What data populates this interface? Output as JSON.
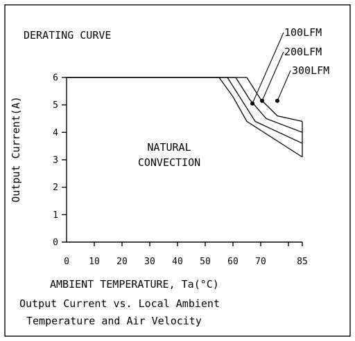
{
  "chart_data": {
    "type": "line",
    "title": "DERATING CURVE",
    "xlabel": "AMBIENT TEMPERATURE, Ta(°C)",
    "ylabel": "Output Current(A)",
    "caption": [
      "Output Current vs. Local Ambient",
      "Temperature and Air Velocity"
    ],
    "annotation": [
      "NATURAL",
      "CONVECTION"
    ],
    "xlim": [
      0,
      85
    ],
    "ylim": [
      0,
      6
    ],
    "x_ticks": [
      0,
      10,
      20,
      30,
      40,
      50,
      60,
      70,
      85
    ],
    "x_tick_labels": [
      "0",
      "10",
      "20",
      "30",
      "40",
      "50",
      "60",
      "70",
      "85"
    ],
    "x_minor_ticks": [
      80
    ],
    "y_ticks": [
      0,
      1,
      2,
      3,
      4,
      5,
      6
    ],
    "y_tick_labels": [
      "0",
      "1",
      "2",
      "3",
      "4",
      "5",
      "6"
    ],
    "grid": false,
    "series": [
      {
        "name": "",
        "x": [
          0,
          55,
          60,
          65,
          85
        ],
        "y": [
          6,
          6,
          5.3,
          4.4,
          3.1
        ]
      },
      {
        "name": "100LFM",
        "x": [
          0,
          58,
          63,
          68,
          85
        ],
        "y": [
          6,
          6,
          5.2,
          4.4,
          3.6
        ]
      },
      {
        "name": "200LFM",
        "x": [
          0,
          61,
          66,
          72,
          85
        ],
        "y": [
          6,
          6,
          5.2,
          4.5,
          4.0
        ]
      },
      {
        "name": "300LFM",
        "x": [
          0,
          65,
          70,
          76,
          85
        ],
        "y": [
          6,
          6,
          5.2,
          4.6,
          4.4
        ]
      }
    ],
    "markers": [
      {
        "series": "100LFM",
        "x": 67,
        "y": 5.05
      },
      {
        "series": "200LFM",
        "x": 70.5,
        "y": 5.15
      },
      {
        "series": "300LFM",
        "x": 76,
        "y": 5.15
      }
    ]
  }
}
